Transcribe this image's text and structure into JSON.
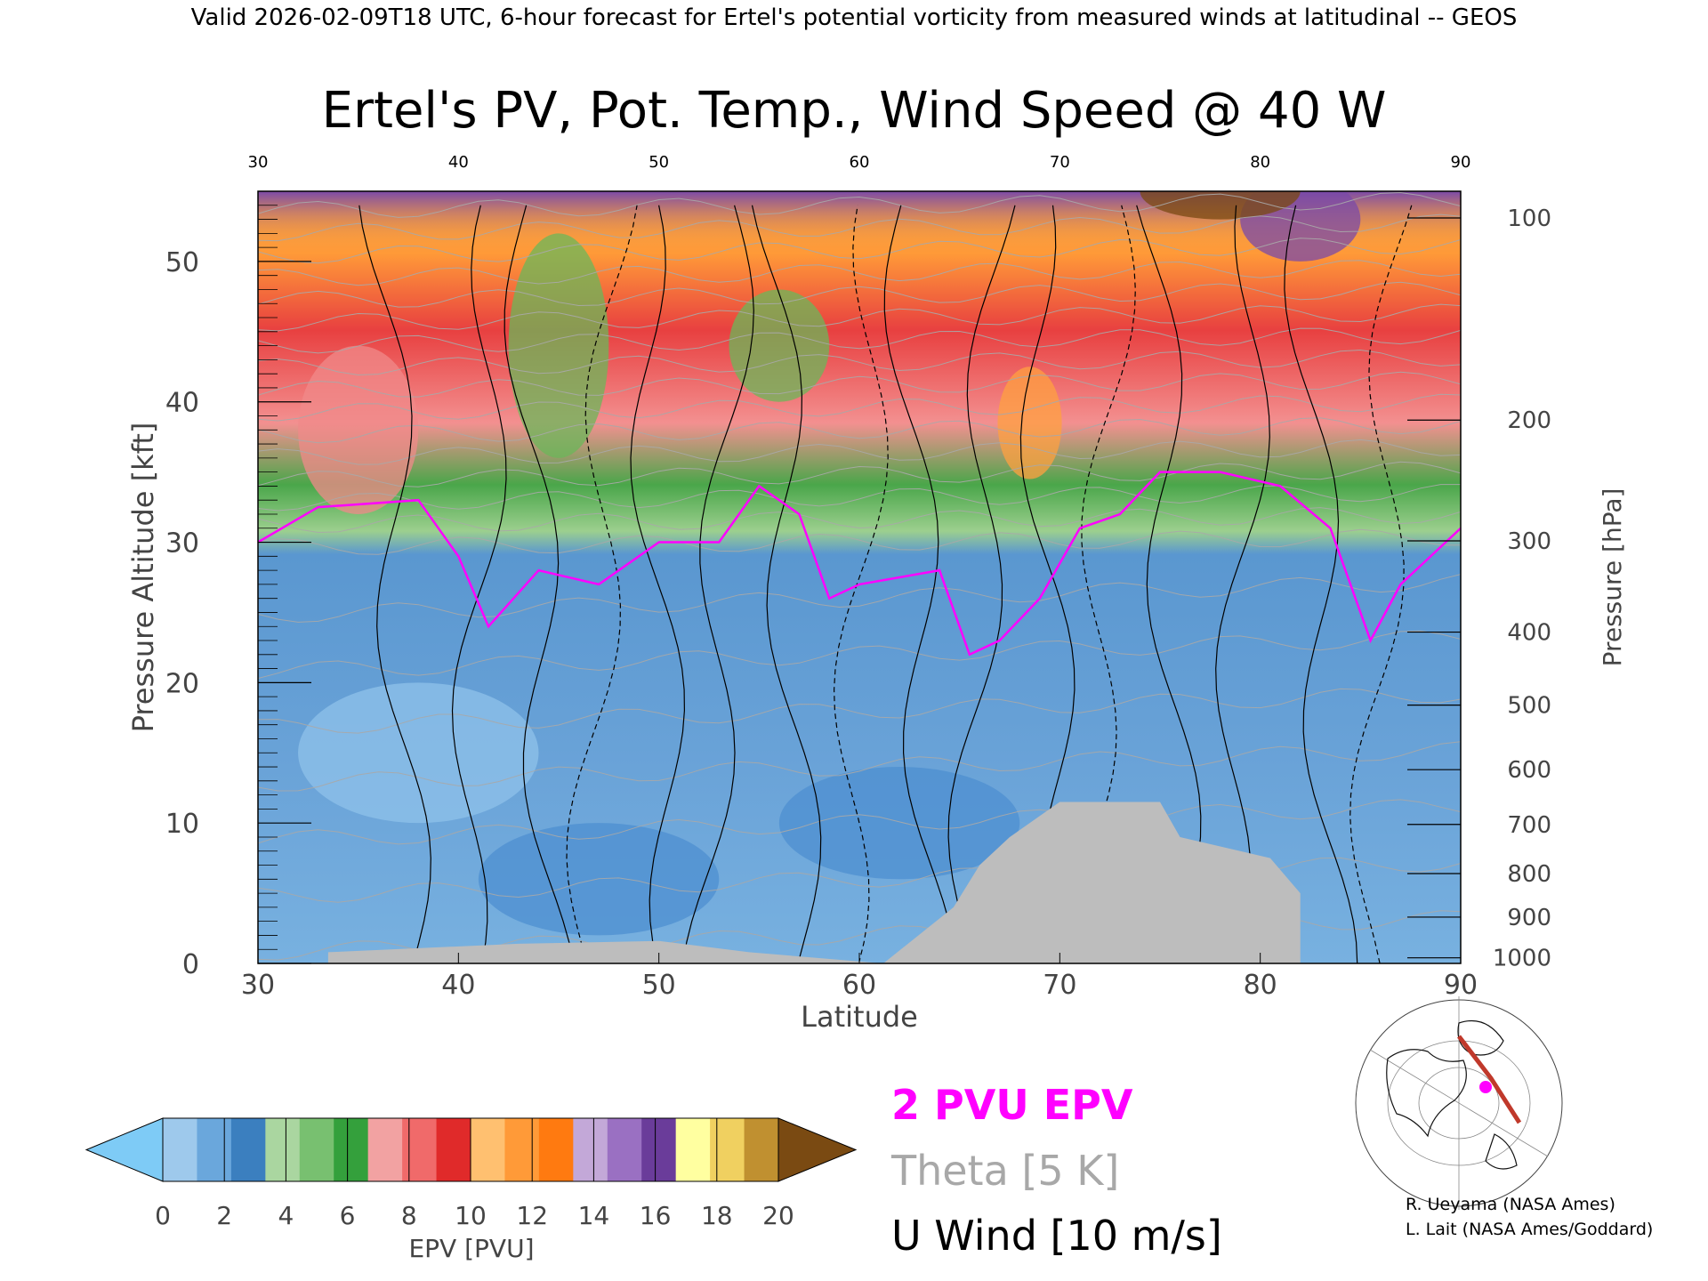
{
  "header": {
    "top_title": "Valid 2026-02-09T18 UTC, 6-hour forecast for Ertel's potential vorticity from measured winds at latitudinal -- GEOS",
    "main_title": "Ertel's PV, Pot. Temp., Wind Speed @ 40 W"
  },
  "chart_data": {
    "type": "heatmap",
    "title": "Ertel's PV, Pot. Temp., Wind Speed @ 40 W",
    "xlabel": "Latitude",
    "ylabel": "Pressure Altitude [kft]",
    "y2label": "Pressure [hPa]",
    "xlim": [
      30,
      90
    ],
    "ylim": [
      0,
      55
    ],
    "x_ticks": [
      "30",
      "40",
      "50",
      "60",
      "70",
      "80",
      "90"
    ],
    "x_top_ticks": [
      "30",
      "40",
      "50",
      "60",
      "70",
      "80",
      "90"
    ],
    "y_ticks": [
      "0",
      "10",
      "20",
      "30",
      "40",
      "50"
    ],
    "pressure_ticks": [
      {
        "label": "100",
        "kft": 53.1
      },
      {
        "label": "200",
        "kft": 38.7
      },
      {
        "label": "300",
        "kft": 30.1
      },
      {
        "label": "400",
        "kft": 23.6
      },
      {
        "label": "500",
        "kft": 18.4
      },
      {
        "label": "600",
        "kft": 13.8
      },
      {
        "label": "700",
        "kft": 9.9
      },
      {
        "label": "800",
        "kft": 6.4
      },
      {
        "label": "900",
        "kft": 3.3
      },
      {
        "label": "1000",
        "kft": 0.4
      }
    ],
    "two_pvu_height_kft": [
      {
        "lat": 30,
        "kft": 30
      },
      {
        "lat": 33,
        "kft": 32.5
      },
      {
        "lat": 38,
        "kft": 33
      },
      {
        "lat": 40,
        "kft": 29
      },
      {
        "lat": 41.5,
        "kft": 24
      },
      {
        "lat": 44,
        "kft": 28
      },
      {
        "lat": 47,
        "kft": 27
      },
      {
        "lat": 50,
        "kft": 30
      },
      {
        "lat": 53,
        "kft": 30
      },
      {
        "lat": 55,
        "kft": 34
      },
      {
        "lat": 57,
        "kft": 32
      },
      {
        "lat": 58.5,
        "kft": 26
      },
      {
        "lat": 60,
        "kft": 27
      },
      {
        "lat": 62,
        "kft": 27.5
      },
      {
        "lat": 64,
        "kft": 28
      },
      {
        "lat": 65.5,
        "kft": 22
      },
      {
        "lat": 67,
        "kft": 23
      },
      {
        "lat": 69,
        "kft": 26
      },
      {
        "lat": 71,
        "kft": 31
      },
      {
        "lat": 73,
        "kft": 32
      },
      {
        "lat": 75,
        "kft": 35
      },
      {
        "lat": 78,
        "kft": 35
      },
      {
        "lat": 81,
        "kft": 34
      },
      {
        "lat": 83.5,
        "kft": 31
      },
      {
        "lat": 85.5,
        "kft": 23
      },
      {
        "lat": 87,
        "kft": 27
      },
      {
        "lat": 90,
        "kft": 31
      }
    ],
    "terrain_kft": [
      {
        "lat": 33.5,
        "kft": 0.8
      },
      {
        "lat": 43,
        "kft": 1.4
      },
      {
        "lat": 50,
        "kft": 1.6
      },
      {
        "lat": 54.5,
        "kft": 0.8
      },
      {
        "lat": 61.2,
        "kft": 0
      },
      {
        "lat": 64.7,
        "kft": 4
      },
      {
        "lat": 66,
        "kft": 7
      },
      {
        "lat": 67.5,
        "kft": 9
      },
      {
        "lat": 69,
        "kft": 10.5
      },
      {
        "lat": 70,
        "kft": 11.5
      },
      {
        "lat": 75,
        "kft": 11.5
      },
      {
        "lat": 76,
        "kft": 9
      },
      {
        "lat": 80.5,
        "kft": 7.5
      },
      {
        "lat": 82,
        "kft": 5
      },
      {
        "lat": 82,
        "kft": 0
      }
    ],
    "colorbar": {
      "label": "EPV [PVU]",
      "ticks": [
        "0",
        "2",
        "4",
        "6",
        "8",
        "10",
        "12",
        "14",
        "16",
        "18",
        "20"
      ],
      "range": [
        0,
        20
      ],
      "under_color": "#7ecbf6",
      "over_color": "#7a4a12",
      "colors": [
        "#9ec9ec",
        "#6aa7dc",
        "#3b7fbf",
        "#aad6a0",
        "#78c070",
        "#34a03c",
        "#f2a2a2",
        "#f06a6a",
        "#e02a2a",
        "#ffc070",
        "#ff9a38",
        "#ff7a10",
        "#c3a8d8",
        "#9a70c2",
        "#6a3c9a",
        "#ffffa0",
        "#f0d060",
        "#c09030"
      ]
    },
    "legend": [
      {
        "text": "2 PVU EPV",
        "color": "#ff00ff"
      },
      {
        "text": "Theta [5 K]",
        "color": "#a8a8a8"
      },
      {
        "text": "U Wind [10 m/s]",
        "color": "#000000"
      }
    ]
  },
  "credits": {
    "line1": "R. Ueyama (NASA Ames)",
    "line2": "L. Lait (NASA Ames/Goddard)"
  },
  "colors": {
    "terrain": "#bdbdbd",
    "epv_contour": "#ff00ff",
    "theta": "#a8a8a8",
    "wind": "#000000"
  }
}
